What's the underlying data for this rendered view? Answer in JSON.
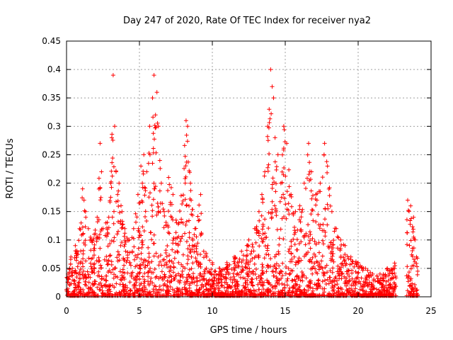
{
  "chart_data": {
    "type": "scatter",
    "title": "Day 247 of 2020, Rate Of TEC Index for receiver nya2",
    "xlabel": "GPS time / hours",
    "ylabel": "ROTI / TECUs",
    "xlim": [
      0,
      25
    ],
    "ylim": [
      0,
      0.45
    ],
    "xticks": [
      "0",
      "5",
      "10",
      "15",
      "20",
      "25"
    ],
    "yticks": [
      "0",
      "0.05",
      "0.1",
      "0.15",
      "0.2",
      "0.25",
      "0.3",
      "0.35",
      "0.4",
      "0.45"
    ],
    "grid": true,
    "marker": "+",
    "color": "#ff0000",
    "series": [
      {
        "x": [
          0.1,
          0.3,
          0.4,
          0.6,
          0.7,
          0.9,
          1.0,
          1.1,
          1.2,
          1.3,
          1.5,
          1.7,
          1.9,
          2.1,
          2.3,
          2.4,
          2.5,
          2.7,
          2.9,
          3.1,
          3.2,
          3.3,
          3.4,
          3.5,
          3.6,
          3.8,
          4.0,
          4.3,
          4.6,
          4.9,
          5.1,
          5.2,
          5.3,
          5.5,
          5.7,
          5.9,
          6.0,
          6.1,
          6.2,
          6.3,
          6.4,
          6.5,
          6.7,
          7.0,
          7.3,
          7.7,
          8.2,
          8.3,
          8.5,
          8.8,
          9.2,
          9.6,
          10.0,
          10.5,
          11.0,
          11.5,
          12.0,
          12.5,
          12.9,
          13.2,
          13.4,
          13.6,
          13.8,
          13.9,
          14.0,
          14.1,
          14.2,
          14.3,
          14.5,
          14.7,
          14.9,
          15.1,
          15.4,
          15.7,
          16.0,
          16.3,
          16.6,
          16.8,
          17.1,
          17.4,
          17.7,
          17.9,
          18.2,
          18.5,
          18.8,
          19.1,
          19.5,
          20.0,
          20.5,
          21.0,
          21.5,
          22.0,
          22.4,
          23.4,
          23.6,
          23.8,
          23.9,
          24.0
        ],
        "y": [
          0.04,
          0.07,
          0.05,
          0.09,
          0.08,
          0.12,
          0.13,
          0.19,
          0.17,
          0.15,
          0.12,
          0.1,
          0.11,
          0.14,
          0.27,
          0.22,
          0.12,
          0.13,
          0.14,
          0.28,
          0.39,
          0.3,
          0.22,
          0.18,
          0.2,
          0.15,
          0.12,
          0.1,
          0.12,
          0.18,
          0.23,
          0.2,
          0.25,
          0.22,
          0.3,
          0.35,
          0.39,
          0.32,
          0.36,
          0.3,
          0.24,
          0.2,
          0.15,
          0.21,
          0.18,
          0.13,
          0.31,
          0.3,
          0.2,
          0.12,
          0.18,
          0.07,
          0.06,
          0.05,
          0.06,
          0.07,
          0.08,
          0.1,
          0.12,
          0.15,
          0.18,
          0.22,
          0.3,
          0.33,
          0.4,
          0.37,
          0.35,
          0.28,
          0.25,
          0.2,
          0.3,
          0.27,
          0.18,
          0.15,
          0.16,
          0.2,
          0.27,
          0.22,
          0.18,
          0.2,
          0.27,
          0.23,
          0.15,
          0.12,
          0.1,
          0.09,
          0.07,
          0.06,
          0.05,
          0.04,
          0.04,
          0.05,
          0.05,
          0.17,
          0.16,
          0.14,
          0.1,
          0.07
        ],
        "point_count": 2600
      }
    ]
  }
}
